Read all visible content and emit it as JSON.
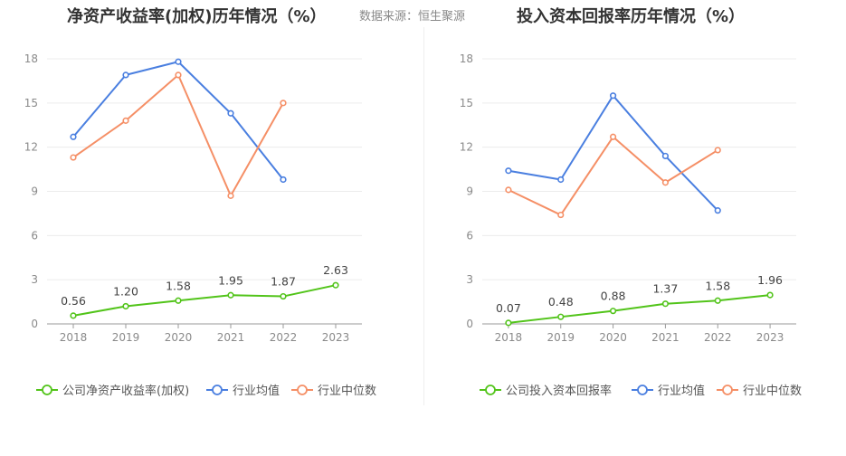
{
  "source_text": "数据来源：恒生聚源",
  "chart_data": [
    {
      "type": "line",
      "title": "净资产收益率(加权)历年情况（%）",
      "categories": [
        "2018",
        "2019",
        "2020",
        "2021",
        "2022",
        "2023"
      ],
      "ylim": [
        0,
        18
      ],
      "yticks": [
        0,
        3,
        6,
        9,
        12,
        15,
        18
      ],
      "grid": true,
      "legend_position": "bottom",
      "series": [
        {
          "name": "公司净资产收益率(加权)",
          "color": "#52c41a",
          "values": [
            0.56,
            1.2,
            1.58,
            1.95,
            1.87,
            2.63
          ],
          "labels": [
            "0.56",
            "1.20",
            "1.58",
            "1.95",
            "1.87",
            "2.63"
          ]
        },
        {
          "name": "行业均值",
          "color": "#4a7fe0",
          "values": [
            12.7,
            16.9,
            17.8,
            14.3,
            9.8,
            null
          ]
        },
        {
          "name": "行业中位数",
          "color": "#f58f66",
          "values": [
            11.3,
            13.8,
            16.9,
            8.7,
            15.0,
            null
          ]
        }
      ]
    },
    {
      "type": "line",
      "title": "投入资本回报率历年情况（%）",
      "categories": [
        "2018",
        "2019",
        "2020",
        "2021",
        "2022",
        "2023"
      ],
      "ylim": [
        0,
        18
      ],
      "yticks": [
        0,
        3,
        6,
        9,
        12,
        15,
        18
      ],
      "grid": true,
      "legend_position": "bottom",
      "series": [
        {
          "name": "公司投入资本回报率",
          "color": "#52c41a",
          "values": [
            0.07,
            0.48,
            0.88,
            1.37,
            1.58,
            1.96
          ],
          "labels": [
            "0.07",
            "0.48",
            "0.88",
            "1.37",
            "1.58",
            "1.96"
          ]
        },
        {
          "name": "行业均值",
          "color": "#4a7fe0",
          "values": [
            10.4,
            9.8,
            15.5,
            11.4,
            7.7,
            null
          ]
        },
        {
          "name": "行业中位数",
          "color": "#f58f66",
          "values": [
            9.1,
            7.4,
            12.7,
            9.6,
            11.8,
            null
          ]
        }
      ]
    }
  ]
}
